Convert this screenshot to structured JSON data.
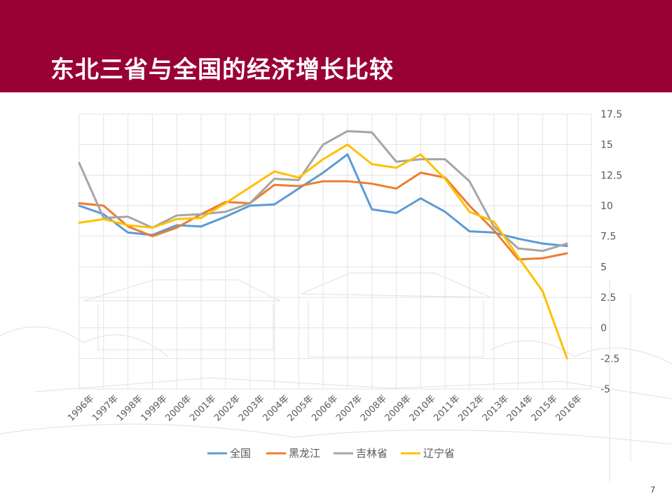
{
  "slide": {
    "title": "东北三省与全国的经济增长比较",
    "page_number": "7",
    "banner_color": "#990033"
  },
  "chart_data": {
    "type": "line",
    "categories": [
      "1996年",
      "1997年",
      "1998年",
      "1999年",
      "2000年",
      "2001年",
      "2002年",
      "2003年",
      "2004年",
      "2005年",
      "2006年",
      "2007年",
      "2008年",
      "2009年",
      "2010年",
      "2011年",
      "2012年",
      "2013年",
      "2014年",
      "2015年",
      "2016年"
    ],
    "series": [
      {
        "name": "全国",
        "color": "#5B9BD5",
        "values": [
          10.0,
          9.3,
          7.8,
          7.6,
          8.4,
          8.3,
          9.1,
          10.0,
          10.1,
          11.4,
          12.7,
          14.2,
          9.7,
          9.4,
          10.6,
          9.5,
          7.9,
          7.8,
          7.3,
          6.9,
          6.7
        ]
      },
      {
        "name": "黑龙江",
        "color": "#ED7D31",
        "values": [
          10.2,
          10.0,
          8.3,
          7.5,
          8.2,
          9.3,
          10.3,
          10.2,
          11.7,
          11.6,
          12.0,
          12.0,
          11.8,
          11.4,
          12.7,
          12.3,
          10.0,
          8.0,
          5.6,
          5.7,
          6.1
        ]
      },
      {
        "name": "吉林省",
        "color": "#A5A5A5",
        "values": [
          13.5,
          9.0,
          9.1,
          8.2,
          9.2,
          9.3,
          9.5,
          10.2,
          12.2,
          12.1,
          15.0,
          16.1,
          16.0,
          13.6,
          13.8,
          13.8,
          12.0,
          8.3,
          6.5,
          6.3,
          6.9
        ]
      },
      {
        "name": "辽宁省",
        "color": "#FFC000",
        "values": [
          8.6,
          8.9,
          8.4,
          8.2,
          8.9,
          9.0,
          10.2,
          11.5,
          12.8,
          12.3,
          13.8,
          15.0,
          13.4,
          13.1,
          14.2,
          12.2,
          9.5,
          8.7,
          5.8,
          3.0,
          -2.5
        ]
      }
    ],
    "y_axis": {
      "min": -5,
      "max": 17.5,
      "step": 2.5,
      "ticks": [
        "17.5",
        "15",
        "12.5",
        "10",
        "7.5",
        "5",
        "2.5",
        "0",
        "-2.5",
        "-5"
      ],
      "position": "right"
    },
    "grid": true,
    "legend_position": "bottom"
  }
}
